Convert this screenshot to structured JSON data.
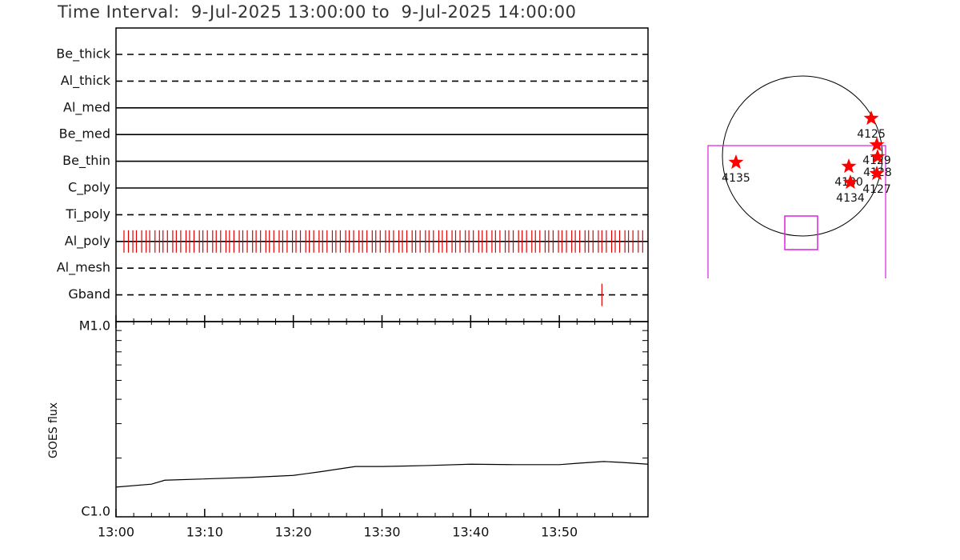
{
  "chart_data": [
    {
      "type": "timeline",
      "title": "Time Interval:  9-Jul-2025 13:00:00 to  9-Jul-2025 14:00:00",
      "xlim": [
        0,
        60
      ],
      "color": "#e00000",
      "rows": [
        {
          "name": "Be_thick",
          "style": "dashed",
          "events": []
        },
        {
          "name": "Al_thick",
          "style": "dashed",
          "events": []
        },
        {
          "name": "Al_med",
          "style": "solid",
          "events": []
        },
        {
          "name": "Be_med",
          "style": "solid",
          "events": []
        },
        {
          "name": "Be_thin",
          "style": "solid",
          "events": []
        },
        {
          "name": "C_poly",
          "style": "solid",
          "events": []
        },
        {
          "name": "Ti_poly",
          "style": "dashed",
          "events": []
        },
        {
          "name": "Al_poly",
          "style": "solid",
          "events": [
            0.9,
            1.4,
            1.9,
            2.3,
            2.9,
            3.4,
            3.8,
            4.4,
            4.9,
            5.3,
            5.8,
            6.4,
            6.8,
            7.3,
            7.9,
            8.3,
            8.8,
            9.4,
            9.8,
            10.3,
            10.9,
            11.3,
            11.8,
            12.4,
            12.8,
            13.3,
            13.9,
            14.3,
            14.8,
            15.4,
            15.8,
            16.3,
            16.9,
            17.3,
            17.8,
            18.4,
            18.8,
            19.3,
            19.9,
            20.3,
            20.8,
            21.4,
            21.8,
            22.3,
            22.9,
            23.3,
            23.8,
            24.4,
            24.8,
            25.3,
            25.9,
            26.3,
            26.8,
            27.4,
            27.8,
            28.3,
            28.9,
            29.3,
            29.8,
            30.4,
            30.8,
            31.3,
            31.9,
            32.3,
            32.8,
            33.4,
            33.8,
            34.3,
            34.9,
            35.3,
            35.8,
            36.4,
            36.8,
            37.3,
            37.9,
            38.3,
            38.8,
            39.4,
            39.8,
            40.3,
            40.9,
            41.3,
            41.8,
            42.4,
            42.8,
            43.3,
            43.9,
            44.3,
            44.8,
            45.4,
            45.8,
            46.3,
            46.9,
            47.3,
            47.8,
            48.4,
            48.8,
            49.3,
            49.9,
            50.3,
            50.8,
            51.4,
            51.8,
            52.3,
            52.9,
            53.3,
            53.8,
            54.4,
            54.8,
            55.3,
            55.9,
            56.3,
            56.8,
            57.4,
            57.8,
            58.3,
            58.9,
            59.4
          ]
        },
        {
          "name": "Al_mesh",
          "style": "dashed",
          "events": []
        },
        {
          "name": "Gband",
          "style": "dashed",
          "events": [
            54.8
          ]
        }
      ]
    },
    {
      "type": "line",
      "ylabel": "GOES flux",
      "log": true,
      "xlim": [
        0,
        60
      ],
      "xticks": [
        {
          "value": 0,
          "label": "13:00"
        },
        {
          "value": 10,
          "label": "13:10"
        },
        {
          "value": 20,
          "label": "13:20"
        },
        {
          "value": 30,
          "label": "13:30"
        },
        {
          "value": 40,
          "label": "13:40"
        },
        {
          "value": 50,
          "label": "13:50"
        }
      ],
      "ylim": [
        1e-06,
        1e-05
      ],
      "yticks": [
        {
          "value": 1e-06,
          "label": "C1.0"
        },
        {
          "value": 1e-05,
          "label": "M1.0"
        }
      ],
      "color": "#000000",
      "x": [
        0,
        4,
        5.5,
        15,
        20,
        23,
        27,
        30,
        35,
        40,
        45,
        50,
        52,
        55,
        57,
        60
      ],
      "values": [
        1.42e-06,
        1.47e-06,
        1.54e-06,
        1.59e-06,
        1.63e-06,
        1.7e-06,
        1.81e-06,
        1.81e-06,
        1.83e-06,
        1.86e-06,
        1.85e-06,
        1.85e-06,
        1.88e-06,
        1.92e-06,
        1.9e-06,
        1.86e-06
      ]
    },
    {
      "type": "map",
      "color": "#ff0000",
      "points": [
        {
          "label": "4125",
          "x": 826,
          "y": 451
        },
        {
          "label": "4135",
          "x": -797,
          "y": -77
        },
        {
          "label": "4129",
          "x": 893,
          "y": 134
        },
        {
          "label": "4128",
          "x": 902,
          "y": -10
        },
        {
          "label": "4130",
          "x": 557,
          "y": -125
        },
        {
          "label": "4127",
          "x": 893,
          "y": -211
        },
        {
          "label": "4134",
          "x": 576,
          "y": -317
        }
      ]
    }
  ]
}
